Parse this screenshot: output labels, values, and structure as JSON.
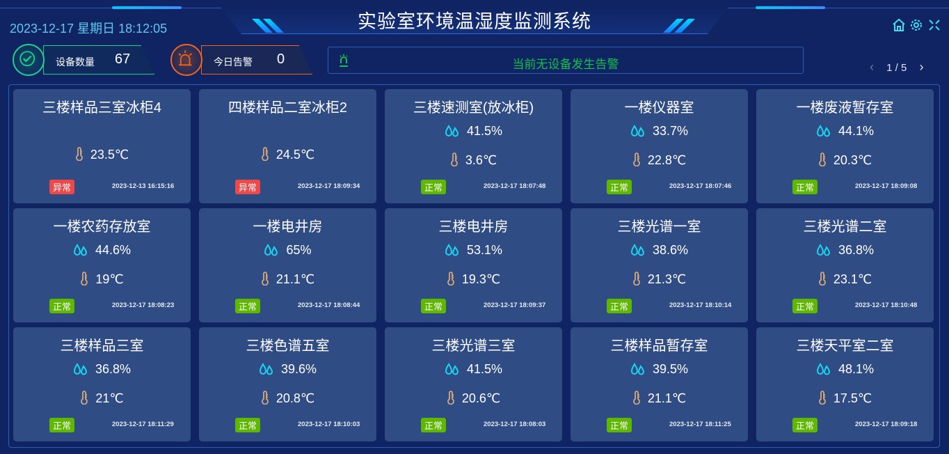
{
  "header": {
    "title": "实验室环境温湿度监测系统",
    "datetime": "2023-12-17 星期日 18:12:05",
    "icons": [
      "home-icon",
      "gear-icon",
      "fullscreen-icon"
    ]
  },
  "stats": {
    "devices": {
      "label": "设备数量",
      "value": "67",
      "color": "#17d28a"
    },
    "alarms": {
      "label": "今日告警",
      "value": "0",
      "color": "#f0641e"
    }
  },
  "alarm_banner": {
    "text": "当前无设备发生告警",
    "color": "#12c04a"
  },
  "pager": {
    "text": "1 / 5"
  },
  "colors": {
    "normal": "#5fb800",
    "abnormal": "#f04848",
    "humidity": "#19d6f0",
    "temperature": "#d8a878"
  },
  "devices": [
    {
      "name": "三楼样品三室冰柜4",
      "humidity": null,
      "temperature": "23.5℃",
      "status": "异常",
      "time": "2023-12-13 16:15:16"
    },
    {
      "name": "四楼样品二室冰柜2",
      "humidity": null,
      "temperature": "24.5℃",
      "status": "异常",
      "time": "2023-12-17 18:09:34"
    },
    {
      "name": "三楼速测室(放冰柜)",
      "humidity": "41.5%",
      "temperature": "3.6℃",
      "status": "正常",
      "time": "2023-12-17 18:07:48"
    },
    {
      "name": "一楼仪器室",
      "humidity": "33.7%",
      "temperature": "22.8℃",
      "status": "正常",
      "time": "2023-12-17 18:07:46"
    },
    {
      "name": "一楼废液暂存室",
      "humidity": "44.1%",
      "temperature": "20.3℃",
      "status": "正常",
      "time": "2023-12-17 18:09:08"
    },
    {
      "name": "一楼农药存放室",
      "humidity": "44.6%",
      "temperature": "19℃",
      "status": "正常",
      "time": "2023-12-17 18:08:23"
    },
    {
      "name": "一楼电井房",
      "humidity": "65%",
      "temperature": "21.1℃",
      "status": "正常",
      "time": "2023-12-17 18:08:44"
    },
    {
      "name": "三楼电井房",
      "humidity": "53.1%",
      "temperature": "19.3℃",
      "status": "正常",
      "time": "2023-12-17 18:09:37"
    },
    {
      "name": "三楼光谱一室",
      "humidity": "38.6%",
      "temperature": "21.3℃",
      "status": "正常",
      "time": "2023-12-17 18:10:14"
    },
    {
      "name": "三楼光谱二室",
      "humidity": "36.8%",
      "temperature": "23.1℃",
      "status": "正常",
      "time": "2023-12-17 18:10:48"
    },
    {
      "name": "三楼样品三室",
      "humidity": "36.8%",
      "temperature": "21℃",
      "status": "正常",
      "time": "2023-12-17 18:11:29"
    },
    {
      "name": "三楼色谱五室",
      "humidity": "39.6%",
      "temperature": "20.8℃",
      "status": "正常",
      "time": "2023-12-17 18:10:03"
    },
    {
      "name": "三楼光谱三室",
      "humidity": "41.5%",
      "temperature": "20.6℃",
      "status": "正常",
      "time": "2023-12-17 18:08:03"
    },
    {
      "name": "三楼样品暂存室",
      "humidity": "39.5%",
      "temperature": "21.1℃",
      "status": "正常",
      "time": "2023-12-17 18:11:25"
    },
    {
      "name": "三楼天平室二室",
      "humidity": "48.1%",
      "temperature": "17.5℃",
      "status": "正常",
      "time": "2023-12-17 18:09:18"
    }
  ]
}
